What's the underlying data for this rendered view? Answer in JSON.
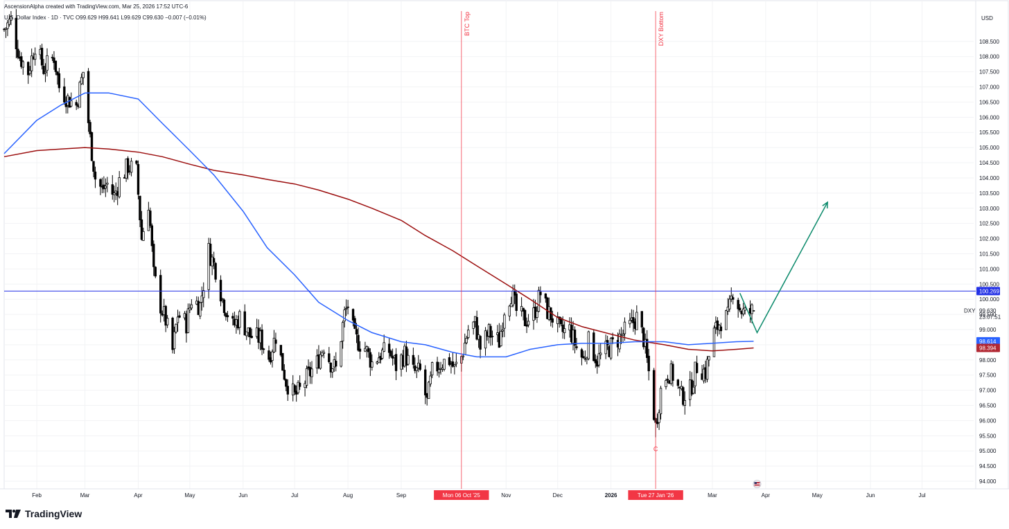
{
  "header": {
    "credit": "AscensionAlpha created with TradingView.com, Mar 25, 2026 17:52 UTC-6"
  },
  "legend": {
    "symbol_text": "U.S. Dollar Index · 1D · TVC",
    "open_label": "O",
    "open": "99.629",
    "high_label": "H",
    "high": "99.641",
    "low_label": "L",
    "low": "99.629",
    "close_label": "C",
    "close": "99.630",
    "change": "−0.007 (−0.01%)"
  },
  "brand": {
    "name": "TradingView",
    "logo_icon": "tradingview-logo-icon"
  },
  "colors": {
    "sma_fast": "#2962ff",
    "sma_slow": "#9b0d0d",
    "annotation_red": "#f23645",
    "projection_green": "#0b8a6b",
    "candle_up": "#ffffff",
    "candle_down": "#000000",
    "horizontal_line": "#2432e6"
  },
  "chart_data": {
    "type": "candlestick",
    "symbol": "DXY",
    "currency_label": "USD",
    "y_axis": {
      "ylim": [
        93.75,
        109.5
      ],
      "ticks": [
        "94.000",
        "94.500",
        "95.000",
        "95.500",
        "96.000",
        "96.500",
        "97.000",
        "97.500",
        "98.000",
        "98.500",
        "99.000",
        "99.500",
        "100.000",
        "100.500",
        "101.000",
        "101.500",
        "102.000",
        "102.500",
        "103.000",
        "103.500",
        "104.000",
        "104.500",
        "105.000",
        "105.500",
        "106.000",
        "106.500",
        "107.000",
        "107.500",
        "108.000",
        "108.500"
      ]
    },
    "x_axis": {
      "range": [
        "2025-01-13",
        "2026-07-31"
      ],
      "ticks": [
        {
          "date": "2025-02-01",
          "label": "Feb",
          "bold": false
        },
        {
          "date": "2025-03-01",
          "label": "Mar",
          "bold": false
        },
        {
          "date": "2025-04-01",
          "label": "Apr",
          "bold": false
        },
        {
          "date": "2025-05-01",
          "label": "May",
          "bold": false
        },
        {
          "date": "2025-06-01",
          "label": "Jun",
          "bold": false
        },
        {
          "date": "2025-07-01",
          "label": "Jul",
          "bold": false
        },
        {
          "date": "2025-08-01",
          "label": "Aug",
          "bold": false
        },
        {
          "date": "2025-09-01",
          "label": "Sep",
          "bold": false
        },
        {
          "date": "2025-11-01",
          "label": "Nov",
          "bold": false
        },
        {
          "date": "2025-12-01",
          "label": "Dec",
          "bold": false
        },
        {
          "date": "2026-01-01",
          "label": "2026",
          "bold": true
        },
        {
          "date": "2026-03-01",
          "label": "Mar",
          "bold": false
        },
        {
          "date": "2026-04-01",
          "label": "Apr",
          "bold": false
        },
        {
          "date": "2026-05-01",
          "label": "May",
          "bold": false
        },
        {
          "date": "2026-06-01",
          "label": "Jun",
          "bold": false
        },
        {
          "date": "2026-07-01",
          "label": "Jul",
          "bold": false
        }
      ]
    },
    "price_path": [
      [
        "2025-01-13",
        108.9
      ],
      [
        "2025-01-17",
        109.2
      ],
      [
        "2025-01-22",
        108.0
      ],
      [
        "2025-01-27",
        107.5
      ],
      [
        "2025-01-31",
        108.4
      ],
      [
        "2025-02-05",
        107.6
      ],
      [
        "2025-02-11",
        108.0
      ],
      [
        "2025-02-14",
        107.0
      ],
      [
        "2025-02-19",
        106.6
      ],
      [
        "2025-02-24",
        106.4
      ],
      [
        "2025-02-28",
        107.5
      ],
      [
        "2025-03-04",
        105.3
      ],
      [
        "2025-03-07",
        104.0
      ],
      [
        "2025-03-11",
        103.6
      ],
      [
        "2025-03-14",
        103.8
      ],
      [
        "2025-03-18",
        103.4
      ],
      [
        "2025-03-21",
        103.9
      ],
      [
        "2025-03-26",
        104.4
      ],
      [
        "2025-03-31",
        104.2
      ],
      [
        "2025-04-03",
        102.0
      ],
      [
        "2025-04-07",
        103.2
      ],
      [
        "2025-04-10",
        100.8
      ],
      [
        "2025-04-14",
        99.8
      ],
      [
        "2025-04-17",
        99.3
      ],
      [
        "2025-04-21",
        98.3
      ],
      [
        "2025-04-24",
        99.5
      ],
      [
        "2025-04-29",
        99.2
      ],
      [
        "2025-05-02",
        100.0
      ],
      [
        "2025-05-07",
        99.8
      ],
      [
        "2025-05-12",
        101.6
      ],
      [
        "2025-05-16",
        101.0
      ],
      [
        "2025-05-20",
        100.0
      ],
      [
        "2025-05-26",
        99.1
      ],
      [
        "2025-05-30",
        99.4
      ],
      [
        "2025-06-05",
        98.8
      ],
      [
        "2025-06-11",
        98.7
      ],
      [
        "2025-06-16",
        98.1
      ],
      [
        "2025-06-20",
        98.8
      ],
      [
        "2025-06-26",
        97.3
      ],
      [
        "2025-07-01",
        96.8
      ],
      [
        "2025-07-04",
        97.0
      ],
      [
        "2025-07-09",
        97.5
      ],
      [
        "2025-07-14",
        97.9
      ],
      [
        "2025-07-18",
        98.5
      ],
      [
        "2025-07-22",
        97.9
      ],
      [
        "2025-07-25",
        97.7
      ],
      [
        "2025-07-30",
        99.5
      ],
      [
        "2025-08-01",
        99.8
      ],
      [
        "2025-08-05",
        98.7
      ],
      [
        "2025-08-11",
        98.4
      ],
      [
        "2025-08-15",
        97.9
      ],
      [
        "2025-08-20",
        98.2
      ],
      [
        "2025-08-25",
        98.3
      ],
      [
        "2025-08-29",
        97.8
      ],
      [
        "2025-09-03",
        98.2
      ],
      [
        "2025-09-08",
        97.6
      ],
      [
        "2025-09-12",
        97.6
      ],
      [
        "2025-09-16",
        96.6
      ],
      [
        "2025-09-19",
        97.6
      ],
      [
        "2025-09-24",
        97.9
      ],
      [
        "2025-09-29",
        98.0
      ],
      [
        "2025-10-02",
        97.7
      ],
      [
        "2025-10-06",
        98.1
      ],
      [
        "2025-10-10",
        99.0
      ],
      [
        "2025-10-14",
        99.2
      ],
      [
        "2025-10-17",
        98.4
      ],
      [
        "2025-10-22",
        98.9
      ],
      [
        "2025-10-28",
        98.6
      ],
      [
        "2025-10-31",
        99.7
      ],
      [
        "2025-11-04",
        100.2
      ],
      [
        "2025-11-07",
        99.6
      ],
      [
        "2025-11-12",
        99.3
      ],
      [
        "2025-11-17",
        99.5
      ],
      [
        "2025-11-21",
        100.2
      ],
      [
        "2025-11-25",
        99.6
      ],
      [
        "2025-11-28",
        99.4
      ],
      [
        "2025-12-03",
        98.9
      ],
      [
        "2025-12-08",
        99.0
      ],
      [
        "2025-12-12",
        98.4
      ],
      [
        "2025-12-16",
        98.0
      ],
      [
        "2025-12-19",
        98.6
      ],
      [
        "2025-12-24",
        98.0
      ],
      [
        "2025-12-29",
        98.3
      ],
      [
        "2026-01-02",
        98.5
      ],
      [
        "2026-01-07",
        98.8
      ],
      [
        "2026-01-12",
        99.1
      ],
      [
        "2026-01-16",
        99.4
      ],
      [
        "2026-01-20",
        98.7
      ],
      [
        "2026-01-23",
        97.6
      ],
      [
        "2026-01-27",
        95.8
      ],
      [
        "2026-01-30",
        97.0
      ],
      [
        "2026-02-03",
        97.6
      ],
      [
        "2026-02-06",
        97.5
      ],
      [
        "2026-02-11",
        96.8
      ],
      [
        "2026-02-16",
        97.0
      ],
      [
        "2026-02-20",
        97.8
      ],
      [
        "2026-02-25",
        97.6
      ],
      [
        "2026-03-02",
        98.9
      ],
      [
        "2026-03-06",
        99.3
      ],
      [
        "2026-03-10",
        99.4
      ],
      [
        "2026-03-13",
        100.3
      ],
      [
        "2026-03-17",
        99.7
      ],
      [
        "2026-03-20",
        99.5
      ],
      [
        "2026-03-25",
        99.63
      ]
    ],
    "sma_fast_path": [
      [
        "2025-01-13",
        104.8
      ],
      [
        "2025-02-01",
        105.9
      ],
      [
        "2025-02-15",
        106.4
      ],
      [
        "2025-03-01",
        106.8
      ],
      [
        "2025-03-15",
        106.8
      ],
      [
        "2025-04-01",
        106.6
      ],
      [
        "2025-04-15",
        105.8
      ],
      [
        "2025-05-01",
        104.9
      ],
      [
        "2025-05-15",
        104.1
      ],
      [
        "2025-06-01",
        102.9
      ],
      [
        "2025-06-15",
        101.7
      ],
      [
        "2025-07-01",
        100.8
      ],
      [
        "2025-07-15",
        99.9
      ],
      [
        "2025-08-01",
        99.3
      ],
      [
        "2025-08-15",
        98.9
      ],
      [
        "2025-09-01",
        98.6
      ],
      [
        "2025-09-15",
        98.5
      ],
      [
        "2025-10-01",
        98.25
      ],
      [
        "2025-10-15",
        98.1
      ],
      [
        "2025-11-01",
        98.1
      ],
      [
        "2025-11-15",
        98.35
      ],
      [
        "2025-12-01",
        98.5
      ],
      [
        "2025-12-15",
        98.55
      ],
      [
        "2026-01-01",
        98.55
      ],
      [
        "2026-01-15",
        98.6
      ],
      [
        "2026-02-01",
        98.6
      ],
      [
        "2026-02-15",
        98.5
      ],
      [
        "2026-03-01",
        98.55
      ],
      [
        "2026-03-15",
        98.6
      ],
      [
        "2026-03-25",
        98.614
      ]
    ],
    "sma_slow_path": [
      [
        "2025-01-13",
        104.7
      ],
      [
        "2025-02-01",
        104.9
      ],
      [
        "2025-02-15",
        104.95
      ],
      [
        "2025-03-01",
        105.0
      ],
      [
        "2025-03-15",
        104.95
      ],
      [
        "2025-04-01",
        104.85
      ],
      [
        "2025-04-15",
        104.7
      ],
      [
        "2025-05-01",
        104.45
      ],
      [
        "2025-05-15",
        104.25
      ],
      [
        "2025-06-01",
        104.1
      ],
      [
        "2025-06-15",
        103.95
      ],
      [
        "2025-07-01",
        103.8
      ],
      [
        "2025-07-15",
        103.6
      ],
      [
        "2025-08-01",
        103.3
      ],
      [
        "2025-08-15",
        103.0
      ],
      [
        "2025-09-01",
        102.6
      ],
      [
        "2025-09-15",
        102.1
      ],
      [
        "2025-10-01",
        101.6
      ],
      [
        "2025-10-15",
        101.1
      ],
      [
        "2025-11-01",
        100.5
      ],
      [
        "2025-11-15",
        100.0
      ],
      [
        "2025-12-01",
        99.4
      ],
      [
        "2025-12-15",
        99.1
      ],
      [
        "2026-01-01",
        98.85
      ],
      [
        "2026-01-15",
        98.65
      ],
      [
        "2026-02-01",
        98.5
      ],
      [
        "2026-02-15",
        98.35
      ],
      [
        "2026-03-01",
        98.3
      ],
      [
        "2026-03-15",
        98.35
      ],
      [
        "2026-03-25",
        98.394
      ]
    ],
    "horizontal_level": {
      "value": 100.269,
      "label": "100.269"
    },
    "price_labels": [
      {
        "value": 100.269,
        "label": "100.269",
        "bg": "#2432e6"
      },
      {
        "value": 98.614,
        "label": "98.614",
        "bg": "#2962ff"
      },
      {
        "value": 98.394,
        "label": "98.394",
        "bg": "#b22833"
      }
    ],
    "last_price": {
      "symbol": "DXY",
      "value": 99.63,
      "label": "99.630",
      "countdown": "23:07:51"
    },
    "annotations": [
      {
        "date": "2025-10-06",
        "text": "BTC Top",
        "date_label": "Mon 06 Oct '25"
      },
      {
        "date": "2026-01-27",
        "text": "DXY Bottom",
        "date_label": "Tue 27 Jan '26"
      }
    ],
    "low_marker": {
      "date": "2026-01-27",
      "value": 95.45,
      "text": "C"
    },
    "projection": [
      [
        "2026-03-17",
        100.2
      ],
      [
        "2026-03-27",
        98.9
      ],
      [
        "2026-05-07",
        103.2
      ]
    ]
  }
}
